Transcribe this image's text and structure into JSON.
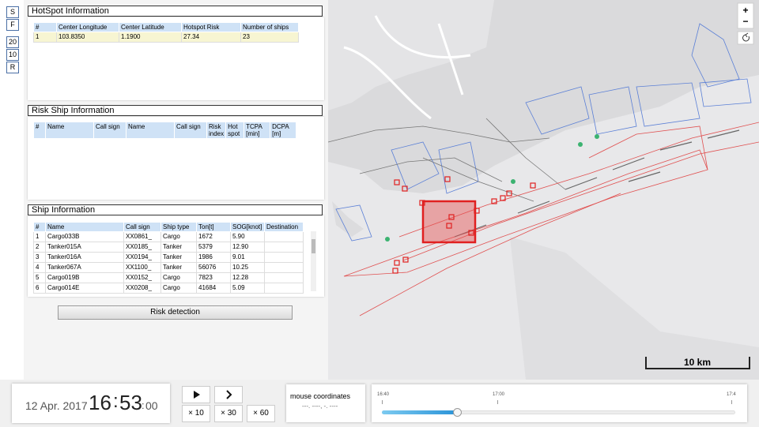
{
  "sidebar": {
    "buttons": [
      "S",
      "F",
      "20",
      "10",
      "R"
    ]
  },
  "hotspot": {
    "title": "HotSpot Information",
    "columns": [
      "#",
      "Center Longitude",
      "Center Latitude",
      "Hotspot Risk",
      "Number of ships"
    ],
    "rows": [
      [
        "1",
        "103.8350",
        "1.1900",
        "27.34",
        "23"
      ]
    ]
  },
  "risk_ship": {
    "title": "Risk Ship Information",
    "columns": [
      "#",
      "Name",
      "Call sign",
      "Name",
      "Call sign",
      "Risk index",
      "Hot spot",
      "TCPA [min]",
      "DCPA [m]"
    ]
  },
  "ship": {
    "title": "Ship Information",
    "columns": [
      "#",
      "Name",
      "Call sign",
      "Ship type",
      "Ton[t]",
      "SOG[knot]",
      "Destination"
    ],
    "rows": [
      [
        "1",
        "Cargo033B",
        "XX0861_",
        "Cargo",
        "1672",
        "5.90"
      ],
      [
        "2",
        "Tanker015A",
        "XX0185_",
        "Tanker",
        "5379",
        "12.90"
      ],
      [
        "3",
        "Tanker016A",
        "XX0194_",
        "Tanker",
        "1986",
        "9.01"
      ],
      [
        "4",
        "Tanker067A",
        "XX1100_",
        "Tanker",
        "56076",
        "10.25"
      ],
      [
        "5",
        "Cargo019B",
        "XX0152_",
        "Cargo",
        "7823",
        "12.28"
      ],
      [
        "6",
        "Cargo014E",
        "XX0208_",
        "Cargo",
        "41684",
        "5.09"
      ]
    ]
  },
  "risk_button": "Risk detection",
  "map": {
    "zoom_in": "+",
    "zoom_out": "−",
    "scale": "10 km"
  },
  "clock": {
    "date": "12 Apr. 2017",
    "hour": "16",
    "minute": "53",
    "second": "00",
    "separator": ":"
  },
  "playback": {
    "speeds": [
      "× 10",
      "× 30",
      "× 60"
    ]
  },
  "mouse": {
    "label": "mouse coordinates",
    "value": "---. ----, -. ----"
  },
  "timeline": {
    "ticks": [
      "16:40",
      "17:00",
      "17:4"
    ]
  }
}
